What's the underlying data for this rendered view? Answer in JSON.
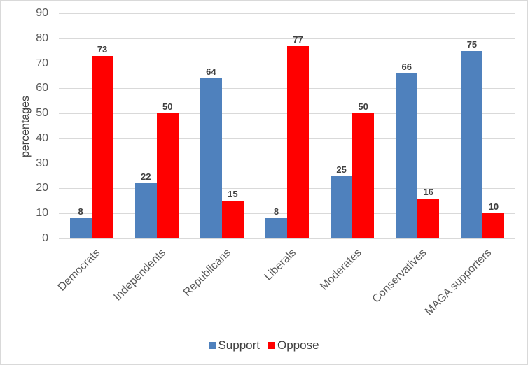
{
  "chart_data": {
    "type": "bar",
    "title": "",
    "xlabel": "",
    "ylabel": "percentages",
    "ylim": [
      0,
      90
    ],
    "yticks": [
      0,
      10,
      20,
      30,
      40,
      50,
      60,
      70,
      80,
      90
    ],
    "grid": true,
    "legend_position": "bottom",
    "categories": [
      "Democrats",
      "Independents",
      "Republicans",
      "Liberals",
      "Moderates",
      "Conservatives",
      "MAGA supporters"
    ],
    "series": [
      {
        "name": "Support",
        "color": "#4f81bd",
        "values": [
          8,
          22,
          64,
          8,
          25,
          66,
          75
        ]
      },
      {
        "name": "Oppose",
        "color": "#ff0000",
        "values": [
          73,
          50,
          15,
          77,
          50,
          16,
          10
        ]
      }
    ]
  },
  "legend": {
    "support_label": "Support",
    "oppose_label": "Oppose"
  }
}
